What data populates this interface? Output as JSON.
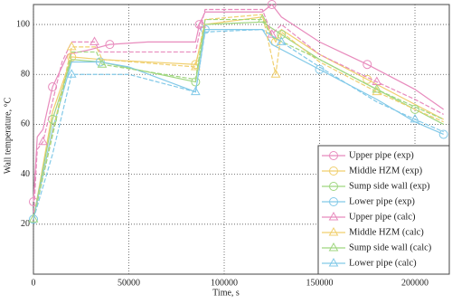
{
  "chart_data": {
    "type": "line",
    "xlabel": "Time, s",
    "ylabel": "Wall temperature, °C",
    "xlim": [
      0,
      218000
    ],
    "ylim": [
      0,
      108
    ],
    "xticks": [
      0,
      50000,
      100000,
      150000,
      200000
    ],
    "yticks": [
      20,
      40,
      60,
      80,
      100
    ],
    "grid": true,
    "legend": "lower right",
    "series": [
      {
        "name": "Upper pipe (exp)",
        "color": "#e88bbd",
        "marker": "circle",
        "linestyle": "solid",
        "x": [
          0,
          2000,
          5000,
          10000,
          18000,
          30000,
          40000,
          60000,
          85000,
          87000,
          90000,
          120000,
          125000,
          130000,
          150000,
          175000,
          200000,
          215000
        ],
        "values": [
          29,
          55,
          58,
          75,
          88,
          90,
          92,
          93,
          93,
          100,
          105,
          105,
          108,
          103,
          93,
          84,
          74,
          66
        ]
      },
      {
        "name": "Middle HZM (exp)",
        "color": "#f0cf6e",
        "marker": "circle",
        "linestyle": "solid",
        "x": [
          0,
          10000,
          20000,
          35000,
          60000,
          85000,
          90000,
          120000,
          127000,
          130000,
          150000,
          175000,
          200000,
          215000
        ],
        "values": [
          22,
          65,
          87,
          86,
          85,
          84,
          100,
          103,
          93,
          98,
          88,
          78,
          68,
          62
        ]
      },
      {
        "name": "Sump side wall (exp)",
        "color": "#9fd67f",
        "marker": "circle",
        "linestyle": "solid",
        "x": [
          0,
          10000,
          20000,
          35000,
          85000,
          90000,
          120000,
          130000,
          150000,
          180000,
          200000,
          215000
        ],
        "values": [
          22,
          62,
          86,
          85,
          77,
          100,
          101,
          96,
          86,
          74,
          66,
          60
        ]
      },
      {
        "name": "Lower pipe (exp)",
        "color": "#82c9e8",
        "marker": "circle",
        "linestyle": "solid",
        "x": [
          0,
          10000,
          20000,
          35000,
          50000,
          85000,
          90000,
          120000,
          125000,
          150000,
          180000,
          200000,
          215000
        ],
        "values": [
          22,
          58,
          85,
          85,
          83,
          73,
          98,
          98,
          92,
          82,
          70,
          61,
          56
        ]
      },
      {
        "name": "Upper pipe (calc)",
        "color": "#e88bbd",
        "marker": "triangle",
        "linestyle": "dashed",
        "x": [
          0,
          2000,
          5000,
          15000,
          20000,
          32000,
          35000,
          85000,
          88000,
          90000,
          120000,
          125000,
          130000,
          150000,
          180000,
          200000,
          215000
        ],
        "values": [
          22,
          50,
          53,
          85,
          93,
          93,
          89,
          89,
          100,
          106,
          106,
          96,
          100,
          88,
          77,
          70,
          64
        ]
      },
      {
        "name": "Middle HZM (calc)",
        "color": "#f0cf6e",
        "marker": "triangle",
        "linestyle": "dashed",
        "x": [
          0,
          20000,
          33000,
          36000,
          85000,
          90000,
          120000,
          127000,
          130000,
          150000,
          180000,
          200000,
          215000
        ],
        "values": [
          22,
          91,
          91,
          86,
          83,
          102,
          104,
          80,
          97,
          85,
          73,
          66,
          61
        ]
      },
      {
        "name": "Sump side wall (calc)",
        "color": "#9fd67f",
        "marker": "triangle",
        "linestyle": "dashed",
        "x": [
          0,
          20000,
          33000,
          36000,
          85000,
          90000,
          120000,
          125000,
          150000,
          180000,
          200000,
          215000
        ],
        "values": [
          22,
          89,
          89,
          84,
          78,
          102,
          102,
          95,
          86,
          74,
          67,
          62
        ]
      },
      {
        "name": "Lower pipe (calc)",
        "color": "#82c9e8",
        "marker": "triangle",
        "linestyle": "dashed",
        "x": [
          0,
          10000,
          20000,
          35000,
          50000,
          85000,
          90000,
          120000,
          130000,
          150000,
          180000,
          200000,
          215000
        ],
        "values": [
          22,
          48,
          80,
          80,
          80,
          73,
          97,
          98,
          93,
          83,
          69,
          62,
          57
        ]
      }
    ]
  }
}
